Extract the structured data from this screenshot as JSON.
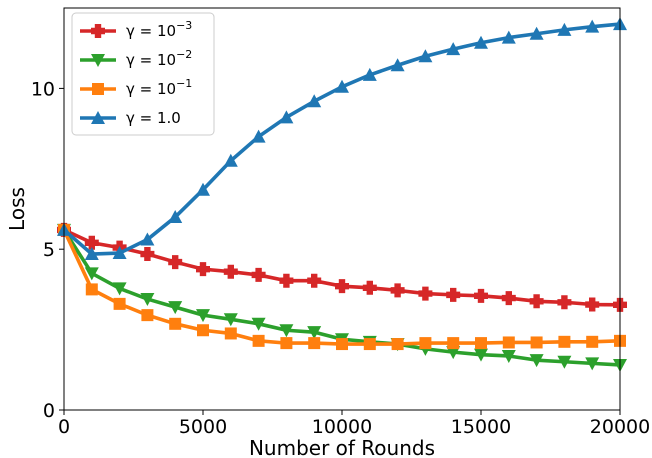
{
  "chart_data": {
    "type": "line",
    "xlabel": "Number of Rounds",
    "ylabel": "Loss",
    "xlim": [
      0,
      20000
    ],
    "ylim": [
      0,
      12.5
    ],
    "x_ticks": [
      0,
      5000,
      10000,
      15000,
      20000
    ],
    "y_ticks": [
      0,
      5,
      10
    ],
    "grid": false,
    "legend_position": "top-left",
    "x": [
      0,
      1000,
      2000,
      3000,
      4000,
      5000,
      6000,
      7000,
      8000,
      9000,
      10000,
      11000,
      12000,
      13000,
      14000,
      15000,
      16000,
      17000,
      18000,
      19000,
      20000
    ],
    "series": [
      {
        "name": "γ = 10^-3",
        "label_main": "γ = 10",
        "label_exp": "−3",
        "color": "#d62728",
        "marker": "plus",
        "values": [
          5.6,
          5.2,
          5.05,
          4.85,
          4.6,
          4.38,
          4.3,
          4.2,
          4.02,
          4.02,
          3.85,
          3.8,
          3.72,
          3.62,
          3.58,
          3.55,
          3.48,
          3.38,
          3.35,
          3.28,
          3.27
        ]
      },
      {
        "name": "γ = 10^-2",
        "label_main": "γ = 10",
        "label_exp": "−2",
        "color": "#2ca02c",
        "marker": "triangle-down",
        "values": [
          5.6,
          4.25,
          3.78,
          3.45,
          3.2,
          2.95,
          2.82,
          2.68,
          2.48,
          2.42,
          2.2,
          2.12,
          2.05,
          1.9,
          1.8,
          1.72,
          1.68,
          1.55,
          1.5,
          1.45,
          1.4
        ]
      },
      {
        "name": "γ = 10^-1",
        "label_main": "γ = 10",
        "label_exp": "−1",
        "color": "#ff7f0e",
        "marker": "square",
        "values": [
          5.6,
          3.75,
          3.3,
          2.95,
          2.68,
          2.48,
          2.38,
          2.15,
          2.08,
          2.08,
          2.05,
          2.05,
          2.05,
          2.08,
          2.08,
          2.08,
          2.1,
          2.1,
          2.12,
          2.12,
          2.15
        ]
      },
      {
        "name": "γ = 1.0",
        "label_main": "γ = 1.0",
        "label_exp": "",
        "color": "#1f77b4",
        "marker": "triangle-up",
        "values": [
          5.6,
          4.85,
          4.88,
          5.3,
          6.0,
          6.85,
          7.75,
          8.5,
          9.1,
          9.6,
          10.05,
          10.42,
          10.72,
          11.0,
          11.22,
          11.42,
          11.58,
          11.7,
          11.82,
          11.92,
          12.0
        ]
      }
    ]
  }
}
